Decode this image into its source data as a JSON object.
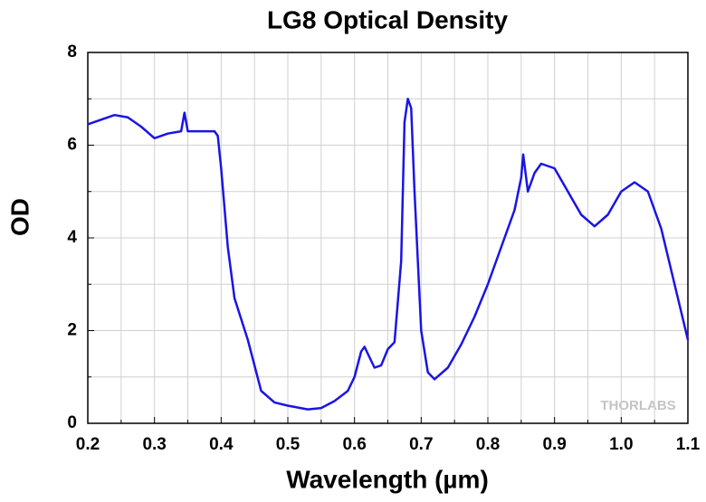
{
  "chart_data": {
    "type": "line",
    "title": "LG8 Optical Density",
    "x_label": "Wavelength (µm)",
    "y_label": "OD",
    "annotation": "THORLABS",
    "x": [
      0.2,
      0.22,
      0.24,
      0.26,
      0.28,
      0.3,
      0.32,
      0.34,
      0.345,
      0.35,
      0.37,
      0.39,
      0.395,
      0.4,
      0.41,
      0.42,
      0.44,
      0.46,
      0.48,
      0.5,
      0.53,
      0.55,
      0.57,
      0.59,
      0.6,
      0.61,
      0.615,
      0.62,
      0.63,
      0.64,
      0.65,
      0.66,
      0.67,
      0.675,
      0.68,
      0.685,
      0.69,
      0.7,
      0.71,
      0.72,
      0.74,
      0.76,
      0.78,
      0.8,
      0.82,
      0.84,
      0.85,
      0.853,
      0.86,
      0.87,
      0.88,
      0.9,
      0.92,
      0.94,
      0.96,
      0.98,
      1.0,
      1.02,
      1.04,
      1.06,
      1.08,
      1.1
    ],
    "series": [
      {
        "name": "OD",
        "color": "#1a14e6",
        "values": [
          6.45,
          6.55,
          6.65,
          6.6,
          6.4,
          6.15,
          6.25,
          6.3,
          6.7,
          6.3,
          6.3,
          6.3,
          6.2,
          5.5,
          3.8,
          2.7,
          1.8,
          0.7,
          0.45,
          0.38,
          0.3,
          0.33,
          0.48,
          0.7,
          1.0,
          1.55,
          1.65,
          1.5,
          1.2,
          1.25,
          1.6,
          1.75,
          3.5,
          6.5,
          7.0,
          6.8,
          5.0,
          2.0,
          1.1,
          0.95,
          1.2,
          1.7,
          2.3,
          3.0,
          3.8,
          4.6,
          5.3,
          5.8,
          5.0,
          5.4,
          5.6,
          5.5,
          5.0,
          4.5,
          4.25,
          4.5,
          5.0,
          5.2,
          5.0,
          4.2,
          3.0,
          1.8
        ]
      }
    ],
    "xlim": [
      0.2,
      1.1
    ],
    "ylim": [
      0,
      8
    ],
    "xticks": [
      0.2,
      0.3,
      0.4,
      0.5,
      0.6,
      0.7,
      0.8,
      0.9,
      {
        "value": 1,
        "label": "1.0"
      },
      1.1
    ],
    "xminorticks": [
      0.25,
      0.35,
      0.45,
      0.55,
      0.65,
      0.75,
      0.85,
      0.95,
      1.05
    ],
    "yticks": [
      0,
      2,
      4,
      6,
      8
    ],
    "yminorticks": [
      1,
      3,
      5,
      7
    ],
    "grid": true
  }
}
